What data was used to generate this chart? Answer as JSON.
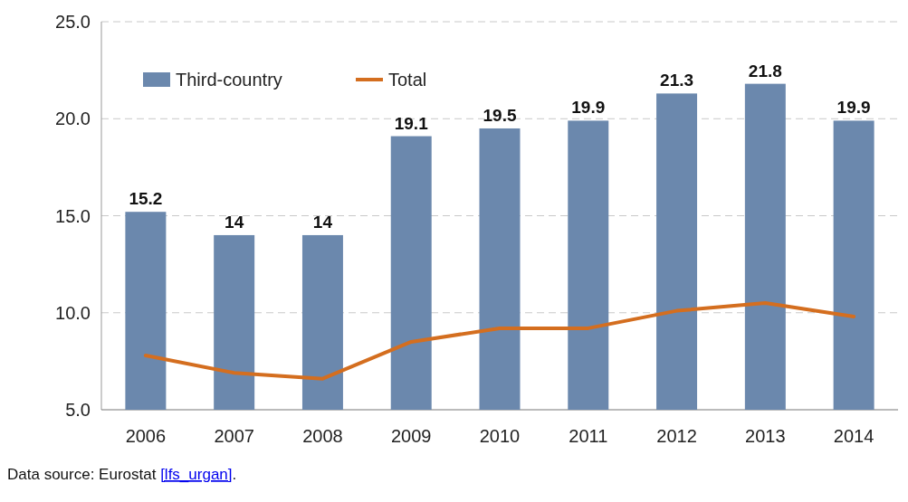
{
  "chart_data": {
    "type": "bar",
    "categories": [
      "2006",
      "2007",
      "2008",
      "2009",
      "2010",
      "2011",
      "2012",
      "2013",
      "2014"
    ],
    "series": [
      {
        "name": "Third-country",
        "color": "#6b88ad",
        "values": [
          15.2,
          14,
          14,
          19.1,
          19.5,
          19.9,
          21.3,
          21.8,
          19.9
        ],
        "data_labels": true
      },
      {
        "name": "Total",
        "type": "line",
        "color": "#d46e1f",
        "values": [
          7.8,
          6.9,
          6.6,
          8.5,
          9.2,
          9.2,
          10.1,
          10.5,
          9.8
        ]
      }
    ],
    "ylim": [
      5,
      25
    ],
    "yticks": [
      {
        "value": 5,
        "label": "5.0"
      },
      {
        "value": 10,
        "label": "10.0"
      },
      {
        "value": 15,
        "label": "15.0"
      },
      {
        "value": 20,
        "label": "20.0"
      },
      {
        "value": 25,
        "label": "25.0"
      }
    ],
    "grid": "y",
    "legend": "top left",
    "marker": "none",
    "line_style": "solid",
    "annotations": [
      "Data source: Eurostat [lfs_urgan]."
    ]
  }
}
